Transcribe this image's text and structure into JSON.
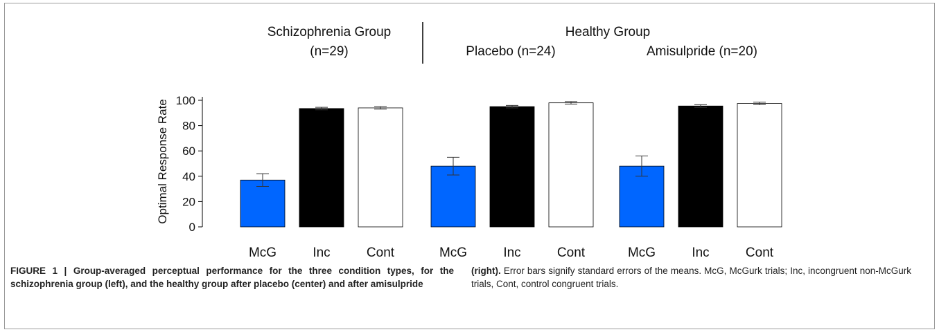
{
  "chart_data": {
    "type": "bar",
    "ylabel": "Optimal Response Rate",
    "ylim": [
      0,
      100
    ],
    "yticks": [
      0,
      20,
      40,
      60,
      80,
      100
    ],
    "groups": [
      {
        "header": "Schizophrenia Group",
        "subheader": "(n=29)",
        "categories": [
          "McG",
          "Inc",
          "Cont"
        ],
        "values": [
          37,
          93.5,
          94
        ],
        "errors": [
          5,
          1,
          1
        ]
      },
      {
        "header": "Healthy Group",
        "subheader": "Placebo (n=24)",
        "categories": [
          "McG",
          "Inc",
          "Cont"
        ],
        "values": [
          48,
          95,
          98
        ],
        "errors": [
          7,
          1,
          1
        ]
      },
      {
        "header": "",
        "subheader": "Amisulpride (n=20)",
        "categories": [
          "McG",
          "Inc",
          "Cont"
        ],
        "values": [
          48,
          95.5,
          97.5
        ],
        "errors": [
          8,
          1,
          1
        ]
      }
    ],
    "colors": {
      "McG": "#0066ff",
      "Inc": "#000000",
      "Cont": "#ffffff"
    },
    "grid": false
  },
  "caption": {
    "bold_lead": "FIGURE 1 | Group-averaged perceptual performance for the three condition types, for the schizophrenia group (left), and the healthy group after placebo (center) and after amisulpride (right).",
    "text": "Error bars signify standard errors of the means. McG, McGurk trials; Inc, incongruent non-McGurk trials, Cont, control congruent trials."
  }
}
